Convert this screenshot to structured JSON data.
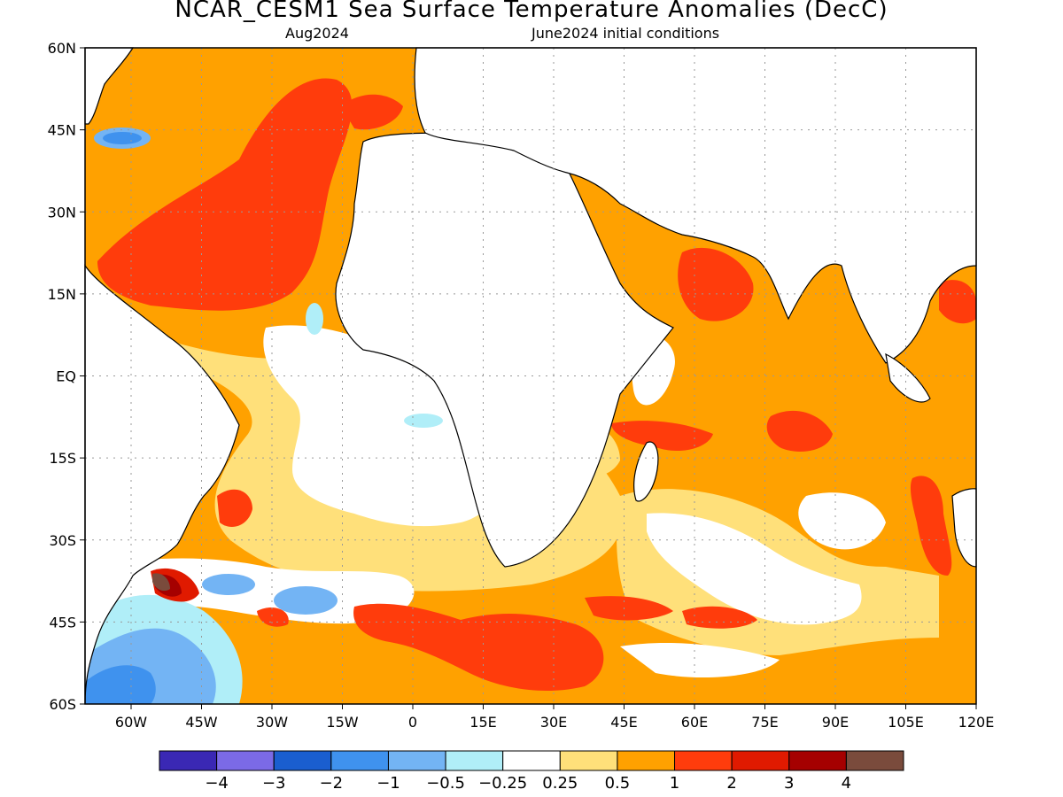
{
  "title": "NCAR_CESM1 Sea Surface Temperature Anomalies (DecC)",
  "valid_label": "Aug2024",
  "init_label": "June2024 initial conditions",
  "lat_labels": [
    "60N",
    "45N",
    "30N",
    "15N",
    "EQ",
    "15S",
    "30S",
    "45S",
    "60S"
  ],
  "lon_labels": [
    "60W",
    "45W",
    "30W",
    "15W",
    "0",
    "15E",
    "30E",
    "45E",
    "60E",
    "75E",
    "90E",
    "105E",
    "120E"
  ],
  "colorbar": {
    "colors": [
      "#3a28b4",
      "#7b6ae6",
      "#1a5ecf",
      "#3f92ee",
      "#73b4f4",
      "#b0eef8",
      "#ffffff",
      "#ffe07a",
      "#ffa100",
      "#ff3c0c",
      "#e01a00",
      "#a50000",
      "#7a4b3c"
    ],
    "labels": [
      "−4",
      "−3",
      "−2",
      "−1",
      "−0.5",
      "−0.25",
      "0.25",
      "0.5",
      "1",
      "2",
      "3",
      "4"
    ]
  },
  "palette": {
    "orange": "#ffa100",
    "yellow": "#ffe07a",
    "red": "#ff3c0c",
    "darkred": "#e01a00",
    "maroon": "#a50000",
    "brown": "#7a4b3c",
    "lightblue": "#b0eef8",
    "skyblue": "#73b4f4",
    "blue": "#3f92ee",
    "deepblue": "#1a5ecf",
    "land": "#ffffff",
    "coast": "#000000"
  }
}
